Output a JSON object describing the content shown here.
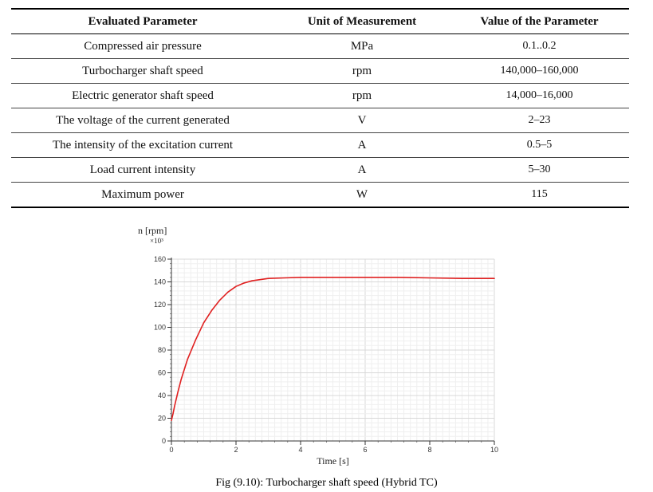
{
  "table": {
    "headers": [
      "Evaluated Parameter",
      "Unit of Measurement",
      "Value of the Parameter"
    ],
    "rows": [
      [
        "Compressed air pressure",
        "MPa",
        "0.1..0.2"
      ],
      [
        "Turbocharger shaft speed",
        "rpm",
        "140,000–160,000"
      ],
      [
        "Electric generator shaft speed",
        "rpm",
        "14,000–16,000"
      ],
      [
        "The voltage of the current generated",
        "V",
        "2–23"
      ],
      [
        "The intensity of the excitation current",
        "A",
        "0.5–5"
      ],
      [
        "Load current intensity",
        "A",
        "5–30"
      ],
      [
        "Maximum power",
        "W",
        "115"
      ]
    ]
  },
  "chart_data": {
    "type": "line",
    "title": "",
    "xlabel": "Time [s]",
    "ylabel": "n [rpm]",
    "y_multiplier": "×10³",
    "xlim": [
      0,
      10
    ],
    "ylim": [
      0,
      160
    ],
    "x_ticks": [
      "0",
      "2",
      "4",
      "6",
      "8",
      "10"
    ],
    "y_ticks": [
      "0",
      "20",
      "40",
      "60",
      "80",
      "100",
      "120",
      "140",
      "160"
    ],
    "grid": true,
    "series": [
      {
        "color": "#e02020",
        "x": [
          0,
          0.05,
          0.1,
          0.2,
          0.3,
          0.5,
          0.75,
          1.0,
          1.25,
          1.5,
          1.75,
          2.0,
          2.25,
          2.5,
          3.0,
          3.5,
          4.0,
          4.5,
          5.0,
          6.0,
          7.0,
          8.0,
          9.0,
          10.0
        ],
        "y": [
          18,
          24,
          31,
          43,
          54,
          72,
          89,
          104,
          115,
          124,
          131,
          136,
          139,
          141,
          143,
          143.5,
          144,
          144,
          144,
          144,
          144,
          143.5,
          143,
          143
        ]
      }
    ]
  },
  "caption": "Fig (9.10): Turbocharger shaft speed (Hybrid TC)"
}
